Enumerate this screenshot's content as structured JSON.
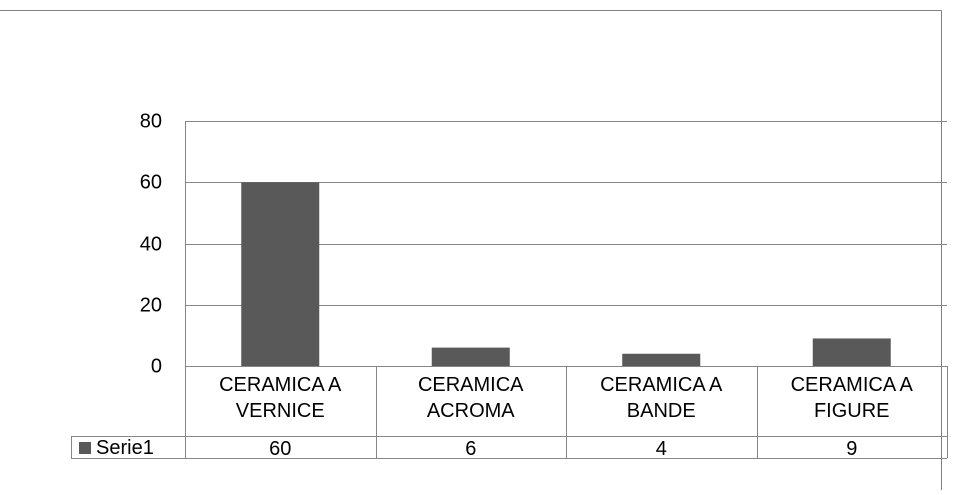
{
  "chart_data": {
    "type": "bar",
    "title": "",
    "xlabel": "",
    "ylabel": "",
    "categories": [
      [
        "CERAMICA A",
        "VERNICE"
      ],
      [
        "CERAMICA",
        "ACROMA"
      ],
      [
        "CERAMICA A",
        "BANDE"
      ],
      [
        "CERAMICA A",
        "FIGURE"
      ]
    ],
    "series": [
      {
        "name": "Serie1",
        "values": [
          60,
          6,
          4,
          9
        ],
        "color": "#595959"
      }
    ],
    "ylim": [
      0,
      80
    ],
    "yticks": [
      "0",
      "20",
      "40",
      "60",
      "80"
    ],
    "grid": true,
    "data_table": true,
    "legend_position": "data-table"
  }
}
